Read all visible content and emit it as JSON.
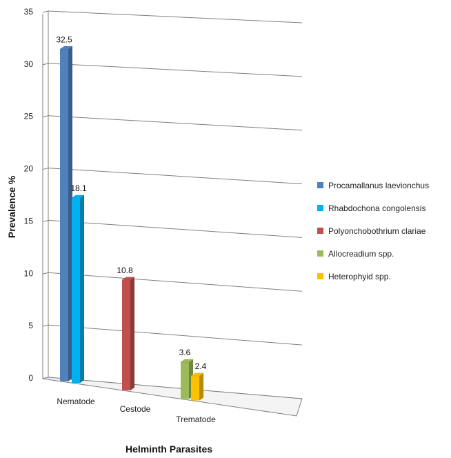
{
  "chart_data": {
    "type": "bar",
    "title": "",
    "xlabel": "Helminth Parasites",
    "ylabel": "Prevalence %",
    "ylim": [
      0,
      35
    ],
    "yticks": [
      0,
      5,
      10,
      15,
      20,
      25,
      30,
      35
    ],
    "grid": true,
    "legend_position": "right",
    "categories": [
      "Nematode",
      "Cestode",
      "Trematode"
    ],
    "series": [
      {
        "name": "Procamallanus laevionchus",
        "category": "Nematode",
        "value": 32.5,
        "color": "#4f81bd"
      },
      {
        "name": "Rhabdochona congolensis",
        "category": "Nematode",
        "value": 18.1,
        "color": "#00b0f0"
      },
      {
        "name": "Polyonchobothrium clariae",
        "category": "Cestode",
        "value": 10.8,
        "color": "#c0504d"
      },
      {
        "name": "Allocreadium spp.",
        "category": "Trematode",
        "value": 3.6,
        "color": "#9bbb59"
      },
      {
        "name": "Heterophyid spp.",
        "category": "Trematode",
        "value": 2.4,
        "color": "#ffc000"
      }
    ]
  }
}
